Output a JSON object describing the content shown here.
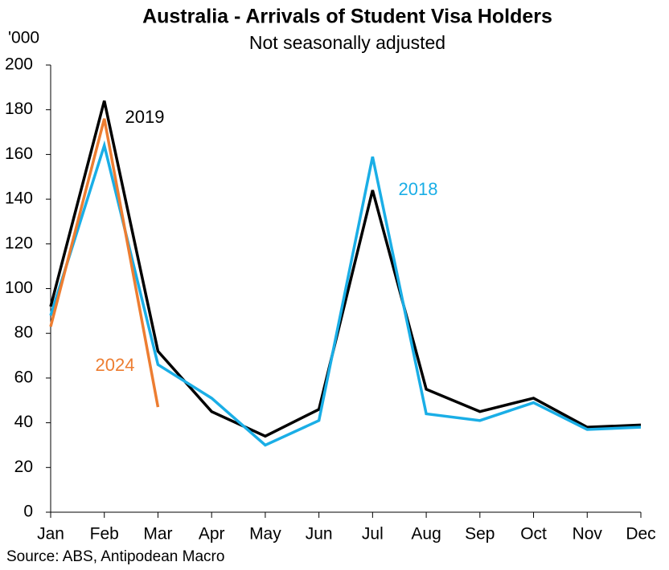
{
  "chart_data": {
    "type": "line",
    "title": "Australia - Arrivals of Student Visa Holders",
    "subtitle": "Not seasonally adjusted",
    "y_unit": "'000",
    "source": "Source: ABS, Antipodean Macro",
    "categories": [
      "Jan",
      "Feb",
      "Mar",
      "Apr",
      "May",
      "Jun",
      "Jul",
      "Aug",
      "Sep",
      "Oct",
      "Nov",
      "Dec"
    ],
    "series": [
      {
        "name": "2019",
        "color": "#000000",
        "values": [
          92,
          184,
          72,
          45,
          34,
          46,
          144,
          55,
          45,
          51,
          38,
          39
        ]
      },
      {
        "name": "2018",
        "color": "#1aaee6",
        "values": [
          88,
          164,
          66,
          51,
          30,
          41,
          159,
          44,
          41,
          49,
          37,
          38
        ]
      },
      {
        "name": "2024",
        "color": "#ed7d31",
        "values": [
          83,
          176,
          47,
          null,
          null,
          null,
          null,
          null,
          null,
          null,
          null,
          null
        ]
      }
    ],
    "ylim": [
      0,
      200
    ],
    "yticks": [
      0,
      20,
      40,
      60,
      80,
      100,
      120,
      140,
      160,
      180,
      200
    ],
    "grid": false
  }
}
